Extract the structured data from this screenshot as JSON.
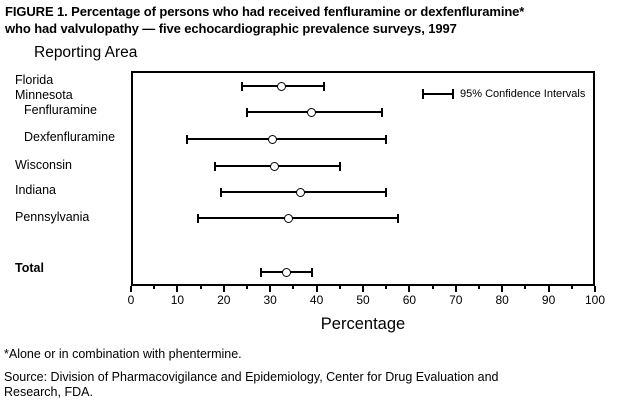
{
  "figure": {
    "title_line1": "FIGURE 1. Percentage of persons who had received fenfluramine or dexfenfluramine*",
    "title_line2": "who had valvulopathy — five echocardiographic prevalence surveys, 1997"
  },
  "footnotes": {
    "asterisk": "*Alone or in combination with phentermine.",
    "source_line1": "Source: Division of Pharmacovigilance and Epidemiology, Center for Drug Evaluation and",
    "source_line2": "Research, FDA."
  },
  "colors": {
    "ink": "#000000",
    "background": "#ffffff"
  },
  "chart_data": {
    "type": "scatter",
    "subtype": "horizontal-error-bar-dot-plot",
    "title": "Percentage of persons who had received fenfluramine or dexfenfluramine who had valvulopathy — five echocardiographic prevalence surveys, 1997",
    "y_axis_title": "Reporting Area",
    "x_axis": {
      "label": "Percentage",
      "min": 0,
      "max": 100,
      "major_tick_step": 10,
      "minor_tick_step": 5,
      "tick_labels": [
        "0",
        "10",
        "20",
        "30",
        "40",
        "50",
        "60",
        "70",
        "80",
        "90",
        "100"
      ]
    },
    "legend": {
      "label": "95% Confidence Intervals",
      "position": "inside-top-right"
    },
    "grid": false,
    "marker": "open-circle",
    "series": [
      {
        "label": "Florida",
        "value": 32.5,
        "ci_low": 24,
        "ci_high": 41.5
      },
      {
        "label": "Minnesota",
        "group_header": true
      },
      {
        "label": "Fenfluramine",
        "indent": true,
        "value": 39,
        "ci_low": 25,
        "ci_high": 54
      },
      {
        "label": "Dexfenfluramine",
        "indent": true,
        "value": 30.5,
        "ci_low": 12,
        "ci_high": 55
      },
      {
        "label": "Wisconsin",
        "value": 31,
        "ci_low": 18,
        "ci_high": 45
      },
      {
        "label": "Indiana",
        "value": 36.5,
        "ci_low": 19.5,
        "ci_high": 55
      },
      {
        "label": "Pennsylvania",
        "value": 34,
        "ci_low": 14.5,
        "ci_high": 57.5
      },
      {
        "label": "Total",
        "bold": true,
        "value": 33.5,
        "ci_low": 28,
        "ci_high": 39
      }
    ]
  }
}
